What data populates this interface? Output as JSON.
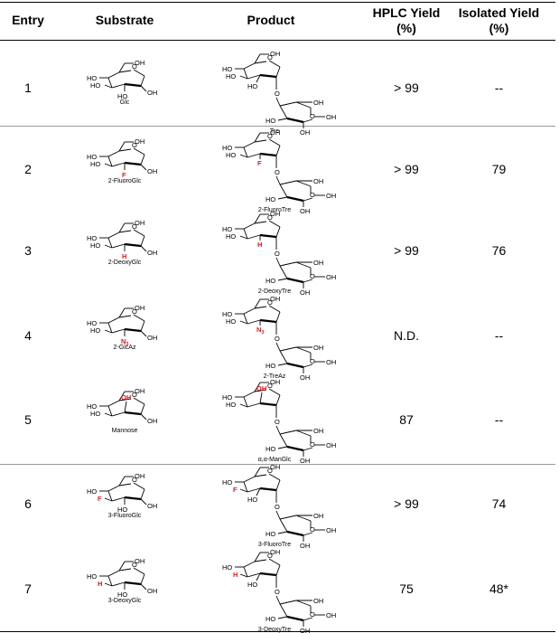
{
  "table": {
    "headers": {
      "entry": "Entry",
      "substrate": "Substrate",
      "product": "Product",
      "hplc_line1": "HPLC Yield",
      "hplc_line2": "(%)",
      "isolated_line1": "Isolated Yield",
      "isolated_line2": "(%)"
    },
    "rows": [
      {
        "entry": "1",
        "substrate": "Glc",
        "product": "Tre",
        "hplc": "> 99",
        "isolated": "--"
      },
      {
        "entry": "2",
        "substrate": "2-FluoroGlc",
        "product": "2-FluoroTre",
        "hplc": "> 99",
        "isolated": "79"
      },
      {
        "entry": "3",
        "substrate": "2-DeoxyGlc",
        "product": "2-DeoxyTre",
        "hplc": "> 99",
        "isolated": "76"
      },
      {
        "entry": "4",
        "substrate": "2-GlcAz",
        "product": "2-TreAz",
        "hplc": "N.D.",
        "isolated": "--"
      },
      {
        "entry": "5",
        "substrate": "Mannose",
        "product": "α,α-ManGlc",
        "hplc": "87",
        "isolated": "--"
      },
      {
        "entry": "6",
        "substrate": "3-FluoroGlc",
        "product": "3-FluoroTre",
        "hplc": "> 99",
        "isolated": "74"
      },
      {
        "entry": "7",
        "substrate": "3-DeoxyGlc",
        "product": "3-DeoxyTre",
        "hplc": "75",
        "isolated": "48*"
      }
    ]
  },
  "structure_labels": {
    "oh": "OH",
    "ho": "HO",
    "o": "O",
    "f": "F",
    "h": "H",
    "n3": "N3"
  },
  "colors": {
    "modification": "#e8141b",
    "rule": "#000000",
    "separator": "#9a9a9a"
  }
}
